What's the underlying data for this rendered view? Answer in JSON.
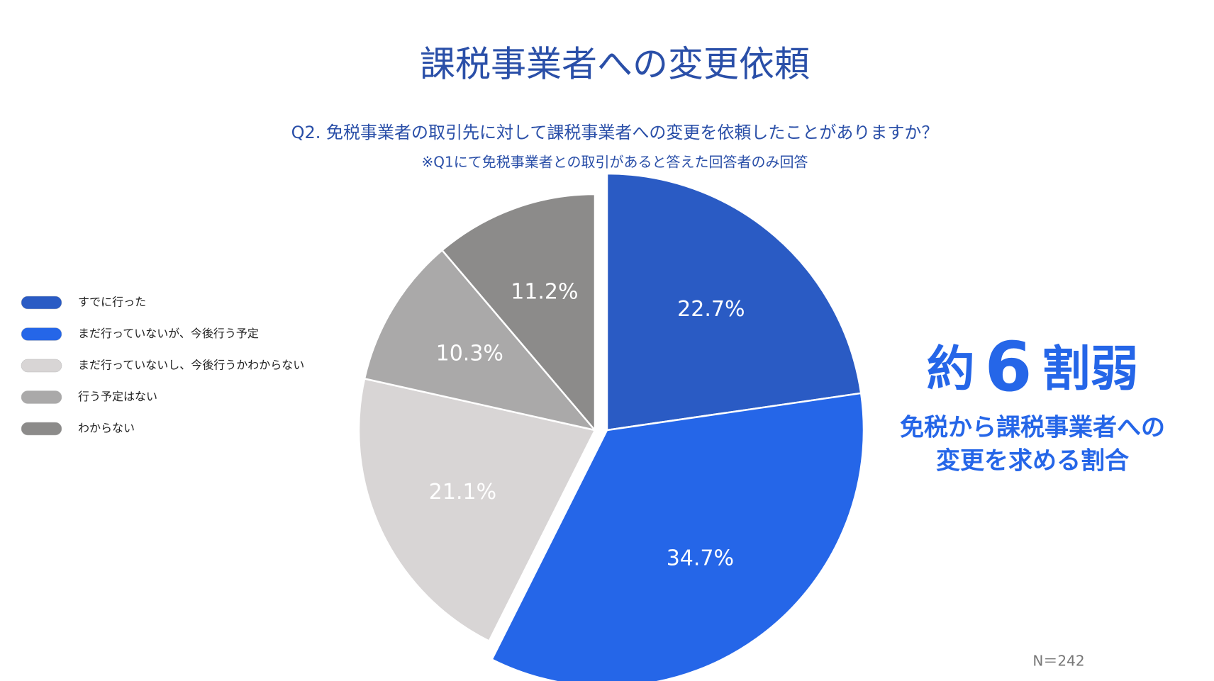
{
  "chart_data": {
    "type": "pie",
    "title": "課税事業者への変更依頼",
    "subtitle": "Q2. 免税事業者の取引先に対して課税事業者への変更を依頼したことがありますか？",
    "note": "※Q1にて免税事業者との取引があると答えた回答者のみ回答",
    "categories": [
      "すでに行った",
      "まだ行っていないが、今後行う予定",
      "まだ行っていないし、今後行うかわからない",
      "行う予定はない",
      "わからない"
    ],
    "values": [
      22.7,
      34.7,
      21.1,
      10.3,
      11.2
    ],
    "value_labels": [
      "22.7%",
      "34.7%",
      "21.1%",
      "10.3%",
      "11.2%"
    ],
    "colors": [
      "#2a5bc4",
      "#2566e8",
      "#d8d5d5",
      "#aaa9a9",
      "#8c8b8a"
    ],
    "legend": "left",
    "annotation": {
      "prefix": "約",
      "number": "6",
      "suffix": "割弱",
      "lines": [
        "免税から課税事業者への",
        "変更を求める割合"
      ]
    },
    "sample": "N＝242"
  }
}
